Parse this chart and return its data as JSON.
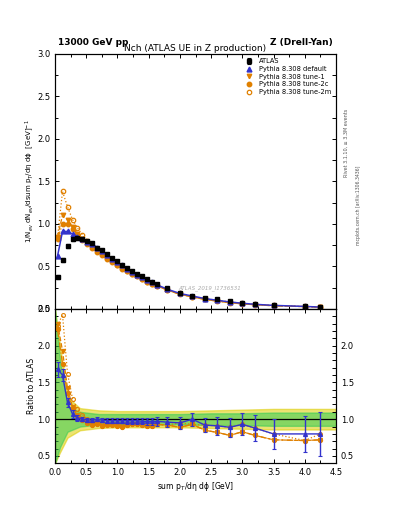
{
  "title_top": "13000 GeV pp",
  "title_top_right": "Z (Drell-Yan)",
  "plot_title": "Nch (ATLAS UE in Z production)",
  "ylabel_main": "1/N$_{ev}$ dN$_{ev}$/dsum p$_T$/dη dϕ  [GeV]$^{-1}$",
  "ylabel_ratio": "Ratio to ATLAS",
  "xlabel": "sum p$_T$/dη dϕ [GeV]",
  "right_label1": "Rivet 3.1.10, ≥ 3.3M events",
  "right_label2": "mcplots.cern.ch [arXiv:1306.3436]",
  "watermark": "ATLAS_2019_I1736531",
  "ylim_main": [
    0,
    3.0
  ],
  "ylim_ratio": [
    0.4,
    2.5
  ],
  "xlim": [
    0,
    4.5
  ],
  "atlas_x": [
    0.04,
    0.12,
    0.2,
    0.28,
    0.36,
    0.44,
    0.52,
    0.6,
    0.68,
    0.76,
    0.84,
    0.92,
    1.0,
    1.08,
    1.16,
    1.24,
    1.32,
    1.4,
    1.48,
    1.56,
    1.64,
    1.8,
    2.0,
    2.2,
    2.4,
    2.6,
    2.8,
    3.0,
    3.2,
    3.5,
    4.0,
    4.25
  ],
  "atlas_y": [
    0.37,
    0.57,
    0.74,
    0.82,
    0.83,
    0.82,
    0.8,
    0.77,
    0.72,
    0.69,
    0.64,
    0.6,
    0.56,
    0.52,
    0.48,
    0.44,
    0.41,
    0.38,
    0.35,
    0.32,
    0.29,
    0.24,
    0.19,
    0.15,
    0.13,
    0.11,
    0.09,
    0.07,
    0.06,
    0.05,
    0.035,
    0.025
  ],
  "atlas_yerr": [
    0.025,
    0.025,
    0.025,
    0.02,
    0.02,
    0.02,
    0.018,
    0.016,
    0.015,
    0.014,
    0.013,
    0.012,
    0.011,
    0.01,
    0.009,
    0.008,
    0.008,
    0.007,
    0.006,
    0.006,
    0.005,
    0.005,
    0.004,
    0.003,
    0.003,
    0.003,
    0.002,
    0.002,
    0.002,
    0.002,
    0.002,
    0.002
  ],
  "pd_x": [
    0.04,
    0.12,
    0.2,
    0.28,
    0.36,
    0.44,
    0.52,
    0.6,
    0.68,
    0.76,
    0.84,
    0.92,
    1.0,
    1.08,
    1.16,
    1.24,
    1.32,
    1.4,
    1.48,
    1.56,
    1.64,
    1.8,
    2.0,
    2.2,
    2.4,
    2.6,
    2.8,
    3.0,
    3.2,
    3.5,
    4.0,
    4.25
  ],
  "pd_y": [
    0.62,
    0.91,
    0.91,
    0.88,
    0.85,
    0.82,
    0.79,
    0.76,
    0.72,
    0.68,
    0.63,
    0.59,
    0.55,
    0.51,
    0.47,
    0.43,
    0.4,
    0.37,
    0.34,
    0.31,
    0.28,
    0.23,
    0.18,
    0.15,
    0.12,
    0.1,
    0.08,
    0.065,
    0.053,
    0.04,
    0.028,
    0.02
  ],
  "t1_x": [
    0.04,
    0.12,
    0.2,
    0.28,
    0.36,
    0.44,
    0.52,
    0.6,
    0.68,
    0.76,
    0.84,
    0.92,
    1.0,
    1.08,
    1.16,
    1.24,
    1.32,
    1.4,
    1.48,
    1.56,
    1.64,
    1.8,
    2.0,
    2.2,
    2.4,
    2.6,
    2.8,
    3.0,
    3.2,
    3.5,
    4.0,
    4.25
  ],
  "t1_y": [
    0.85,
    1.1,
    1.05,
    0.96,
    0.88,
    0.82,
    0.77,
    0.72,
    0.67,
    0.63,
    0.59,
    0.55,
    0.51,
    0.47,
    0.44,
    0.41,
    0.38,
    0.35,
    0.32,
    0.29,
    0.27,
    0.22,
    0.17,
    0.14,
    0.11,
    0.09,
    0.07,
    0.058,
    0.047,
    0.036,
    0.025,
    0.018
  ],
  "t2c_x": [
    0.04,
    0.12,
    0.2,
    0.28,
    0.36,
    0.44,
    0.52,
    0.6,
    0.68,
    0.76,
    0.84,
    0.92,
    1.0,
    1.08,
    1.16,
    1.24,
    1.32,
    1.4,
    1.48,
    1.56,
    1.64,
    1.8,
    2.0,
    2.2,
    2.4,
    2.6,
    2.8,
    3.0,
    3.2,
    3.5,
    4.0,
    4.25
  ],
  "t2c_y": [
    0.82,
    1.0,
    1.0,
    0.94,
    0.87,
    0.81,
    0.76,
    0.71,
    0.67,
    0.63,
    0.59,
    0.55,
    0.51,
    0.47,
    0.44,
    0.41,
    0.38,
    0.35,
    0.32,
    0.29,
    0.27,
    0.22,
    0.17,
    0.14,
    0.11,
    0.09,
    0.07,
    0.058,
    0.047,
    0.036,
    0.025,
    0.018
  ],
  "t2m_x": [
    0.04,
    0.12,
    0.2,
    0.28,
    0.36,
    0.44,
    0.52,
    0.6,
    0.68,
    0.76,
    0.84,
    0.92,
    1.0,
    1.08,
    1.16,
    1.24,
    1.32,
    1.4,
    1.48,
    1.56,
    1.64,
    1.8,
    2.0,
    2.2,
    2.4,
    2.6,
    2.8,
    3.0,
    3.2,
    3.5,
    4.0,
    4.25
  ],
  "t2m_y": [
    0.84,
    1.38,
    1.2,
    1.05,
    0.95,
    0.87,
    0.8,
    0.74,
    0.69,
    0.64,
    0.6,
    0.56,
    0.52,
    0.48,
    0.44,
    0.41,
    0.38,
    0.35,
    0.32,
    0.29,
    0.27,
    0.22,
    0.18,
    0.14,
    0.12,
    0.1,
    0.08,
    0.065,
    0.053,
    0.04,
    0.028,
    0.02
  ],
  "rpd_y": [
    1.68,
    1.6,
    1.23,
    1.07,
    1.02,
    1.0,
    0.99,
    0.99,
    1.0,
    0.99,
    0.98,
    0.98,
    0.98,
    0.98,
    0.98,
    0.98,
    0.98,
    0.97,
    0.97,
    0.97,
    0.97,
    0.96,
    0.95,
    1.0,
    0.92,
    0.91,
    0.89,
    0.93,
    0.88,
    0.8,
    0.8,
    0.8
  ],
  "rpd_yerr": [
    0.1,
    0.08,
    0.06,
    0.05,
    0.04,
    0.03,
    0.03,
    0.03,
    0.03,
    0.03,
    0.03,
    0.03,
    0.03,
    0.03,
    0.04,
    0.04,
    0.04,
    0.04,
    0.05,
    0.05,
    0.06,
    0.07,
    0.08,
    0.09,
    0.1,
    0.12,
    0.13,
    0.15,
    0.18,
    0.2,
    0.25,
    0.3
  ],
  "rt1_y": [
    2.3,
    1.93,
    1.42,
    1.17,
    1.06,
    1.0,
    0.96,
    0.94,
    0.93,
    0.91,
    0.92,
    0.92,
    0.91,
    0.9,
    0.92,
    0.93,
    0.93,
    0.92,
    0.91,
    0.91,
    0.93,
    0.92,
    0.89,
    0.93,
    0.85,
    0.82,
    0.78,
    0.83,
    0.78,
    0.72,
    0.71,
    0.72
  ],
  "rt2c_y": [
    2.22,
    1.75,
    1.35,
    1.15,
    1.05,
    0.99,
    0.95,
    0.92,
    0.93,
    0.91,
    0.92,
    0.92,
    0.91,
    0.9,
    0.92,
    0.93,
    0.93,
    0.92,
    0.91,
    0.91,
    0.93,
    0.92,
    0.89,
    0.93,
    0.85,
    0.82,
    0.78,
    0.83,
    0.78,
    0.72,
    0.71,
    0.72
  ],
  "rt2m_y": [
    2.27,
    2.42,
    1.62,
    1.28,
    1.14,
    1.06,
    1.0,
    0.96,
    0.96,
    0.93,
    0.94,
    0.93,
    0.93,
    0.92,
    0.92,
    0.93,
    0.93,
    0.92,
    0.91,
    0.91,
    0.93,
    0.92,
    0.95,
    0.93,
    0.92,
    0.91,
    0.89,
    0.93,
    0.88,
    0.8,
    0.71,
    0.8
  ],
  "yb_x": [
    0.0,
    0.08,
    0.2,
    0.4,
    0.7,
    1.0,
    1.5,
    2.0,
    2.5,
    3.0,
    3.5,
    4.0,
    4.5
  ],
  "yb_lo": [
    0.4,
    0.55,
    0.75,
    0.85,
    0.88,
    0.89,
    0.89,
    0.89,
    0.88,
    0.87,
    0.86,
    0.86,
    0.86
  ],
  "yb_hi": [
    2.5,
    2.0,
    1.3,
    1.15,
    1.12,
    1.11,
    1.11,
    1.11,
    1.12,
    1.13,
    1.14,
    1.14,
    1.14
  ],
  "gb_x": [
    0.0,
    0.08,
    0.2,
    0.4,
    0.7,
    1.0,
    1.5,
    2.0,
    2.5,
    3.0,
    3.5,
    4.0,
    4.5
  ],
  "gb_lo": [
    0.4,
    0.62,
    0.83,
    0.9,
    0.93,
    0.93,
    0.93,
    0.93,
    0.92,
    0.92,
    0.91,
    0.91,
    0.91
  ],
  "gb_hi": [
    2.5,
    1.8,
    1.17,
    1.1,
    1.07,
    1.07,
    1.07,
    1.07,
    1.08,
    1.08,
    1.09,
    1.09,
    1.09
  ],
  "c_atlas": "#000000",
  "c_blue": "#3333cc",
  "c_orange": "#e08000",
  "c_green": "#33cc55",
  "c_yellow": "#ddcc00"
}
